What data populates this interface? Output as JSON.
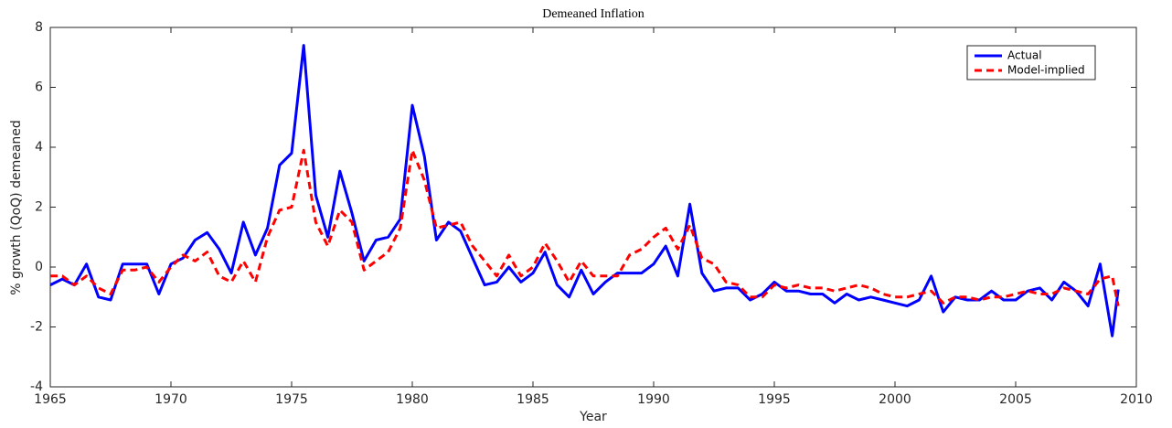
{
  "chart_data": {
    "type": "line",
    "title": "Demeaned Inflation",
    "xlabel": "Year",
    "ylabel": "% growth (QoQ) demeaned",
    "x": [
      1965.0,
      1965.5,
      1966.0,
      1966.5,
      1967.0,
      1967.5,
      1968.0,
      1968.5,
      1969.0,
      1969.5,
      1970.0,
      1970.5,
      1971.0,
      1971.5,
      1972.0,
      1972.5,
      1973.0,
      1973.5,
      1974.0,
      1974.5,
      1975.0,
      1975.5,
      1976.0,
      1976.5,
      1977.0,
      1977.5,
      1978.0,
      1978.5,
      1979.0,
      1979.5,
      1980.0,
      1980.5,
      1981.0,
      1981.5,
      1982.0,
      1982.5,
      1983.0,
      1983.5,
      1984.0,
      1984.5,
      1985.0,
      1985.5,
      1986.0,
      1986.5,
      1987.0,
      1987.5,
      1988.0,
      1988.5,
      1989.0,
      1989.5,
      1990.0,
      1990.5,
      1991.0,
      1991.5,
      1992.0,
      1992.5,
      1993.0,
      1993.5,
      1994.0,
      1994.5,
      1995.0,
      1995.5,
      1996.0,
      1996.5,
      1997.0,
      1997.5,
      1998.0,
      1998.5,
      1999.0,
      1999.5,
      2000.0,
      2000.5,
      2001.0,
      2001.5,
      2002.0,
      2002.5,
      2003.0,
      2003.5,
      2004.0,
      2004.5,
      2005.0,
      2005.5,
      2006.0,
      2006.5,
      2007.0,
      2007.5,
      2008.0,
      2008.5,
      2009.0,
      2009.25
    ],
    "series": [
      {
        "name": "Actual",
        "color": "#0000ff",
        "dash": false,
        "values": [
          -0.6,
          -0.4,
          -0.6,
          0.1,
          -1.0,
          -1.1,
          0.1,
          0.1,
          0.1,
          -0.9,
          0.1,
          0.3,
          0.9,
          1.15,
          0.6,
          -0.2,
          1.5,
          0.4,
          1.3,
          3.4,
          3.8,
          7.4,
          2.4,
          1.0,
          3.2,
          1.8,
          0.2,
          0.9,
          1.0,
          1.6,
          5.4,
          3.7,
          0.9,
          1.5,
          1.2,
          0.3,
          -0.6,
          -0.5,
          0.0,
          -0.5,
          -0.2,
          0.5,
          -0.6,
          -1.0,
          -0.1,
          -0.9,
          -0.5,
          -0.2,
          -0.2,
          -0.2,
          0.1,
          0.7,
          -0.3,
          2.1,
          -0.2,
          -0.8,
          -0.7,
          -0.7,
          -1.1,
          -0.9,
          -0.5,
          -0.8,
          -0.8,
          -0.9,
          -0.9,
          -1.2,
          -0.9,
          -1.1,
          -1.0,
          -1.1,
          -1.2,
          -1.3,
          -1.1,
          -0.3,
          -1.5,
          -1.0,
          -1.1,
          -1.1,
          -0.8,
          -1.1,
          -1.1,
          -0.8,
          -0.7,
          -1.1,
          -0.5,
          -0.8,
          -1.3,
          0.1,
          -2.3,
          -0.75
        ]
      },
      {
        "name": "Model-implied",
        "color": "#ff0000",
        "dash": true,
        "values": [
          -0.3,
          -0.3,
          -0.6,
          -0.3,
          -0.7,
          -0.9,
          -0.1,
          -0.1,
          0.0,
          -0.5,
          0.0,
          0.4,
          0.2,
          0.5,
          -0.3,
          -0.5,
          0.2,
          -0.5,
          1.0,
          1.9,
          2.0,
          3.9,
          1.5,
          0.7,
          1.9,
          1.5,
          -0.1,
          0.2,
          0.5,
          1.3,
          3.9,
          2.9,
          1.3,
          1.4,
          1.5,
          0.7,
          0.2,
          -0.3,
          0.4,
          -0.3,
          0.0,
          0.8,
          0.2,
          -0.5,
          0.2,
          -0.3,
          -0.3,
          -0.3,
          0.4,
          0.6,
          1.0,
          1.3,
          0.6,
          1.4,
          0.3,
          0.1,
          -0.5,
          -0.6,
          -1.0,
          -1.0,
          -0.6,
          -0.7,
          -0.6,
          -0.7,
          -0.7,
          -0.8,
          -0.7,
          -0.6,
          -0.7,
          -0.9,
          -1.0,
          -1.0,
          -0.9,
          -0.8,
          -1.2,
          -1.0,
          -1.0,
          -1.1,
          -1.0,
          -1.0,
          -0.9,
          -0.8,
          -0.9,
          -0.9,
          -0.7,
          -0.8,
          -0.9,
          -0.4,
          -0.3,
          -1.3
        ]
      }
    ],
    "xlim": [
      1965,
      2010
    ],
    "xticks": [
      1965,
      1970,
      1975,
      1980,
      1985,
      1990,
      1995,
      2000,
      2005,
      2010
    ],
    "ylim": [
      -4,
      8
    ],
    "yticks": [
      -4,
      -2,
      0,
      2,
      4,
      6,
      8
    ],
    "grid": false,
    "legend": "northeast"
  }
}
